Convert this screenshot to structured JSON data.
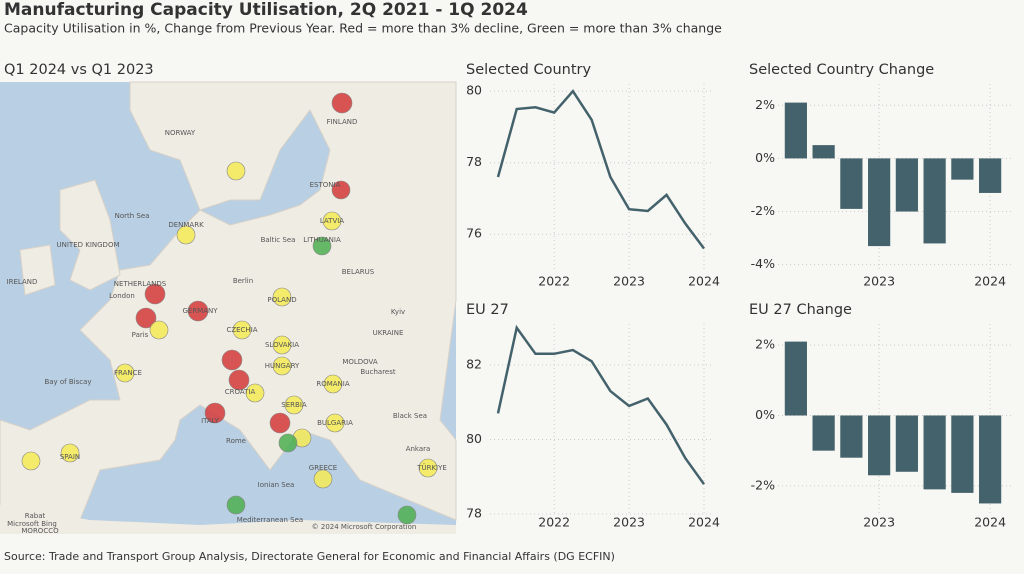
{
  "title": "Manufacturing Capacity Utilisation, 2Q 2021 - 1Q 2024",
  "subtitle": "Capacity Utilisation in %, Change from Previous Year. Red = more than 3% decline, Green = more than 3% change",
  "source": "Source: Trade and Transport Group Analysis, Directorate General for Economic and Financial Affairs (DG ECFIN)",
  "map": {
    "title": "Q1 2024 vs Q1 2023",
    "labels": [
      "NORWAY",
      "FINLAND",
      "North Sea",
      "UNITED KINGDOM",
      "IRELAND",
      "DENMARK",
      "NETHERLANDS",
      "London",
      "Berlin",
      "POLAND",
      "GERMANY",
      "Paris",
      "CZECHIA",
      "FRANCE",
      "Bay of Biscay",
      "SLOVAKIA",
      "HUNGARY",
      "UKRAINE",
      "Kyiv",
      "BELARUS",
      "LITHUANIA",
      "LATVIA",
      "ESTONIA",
      "Baltic Sea",
      "MOLDOVA",
      "ROMANIA",
      "Bucharest",
      "CROATIA",
      "SERBIA",
      "BULGARIA",
      "Black Sea",
      "Rome",
      "ITALY",
      "SPAIN",
      "GREECE",
      "Ankara",
      "TÜRKIYE",
      "Ionian Sea",
      "Mediterranean Sea",
      "Rabat",
      "MOROCCO",
      "© 2024 Microsoft Corporation",
      "Microsoft Bing"
    ]
  },
  "chart_data": [
    {
      "type": "line",
      "title": "Selected Country",
      "color": "#44626b",
      "x": [
        2021.25,
        2021.5,
        2021.75,
        2022,
        2022.25,
        2022.5,
        2022.75,
        2023,
        2023.25,
        2023.5,
        2023.75,
        2024
      ],
      "values": [
        77.6,
        79.5,
        79.55,
        79.4,
        80.0,
        79.2,
        77.6,
        76.7,
        76.65,
        77.1,
        76.3,
        75.6
      ],
      "xlim": [
        2021.25,
        2024
      ],
      "xticks": [
        2022,
        2023,
        2024
      ],
      "ylim": [
        75,
        80.2
      ],
      "yticks": [
        76,
        78,
        80
      ],
      "grid": true
    },
    {
      "type": "bar",
      "title": "Selected Country Change",
      "color": "#44626b",
      "x": [
        2022.25,
        2022.5,
        2022.75,
        2023,
        2023.25,
        2023.5,
        2023.75,
        2024
      ],
      "values": [
        2.1,
        0.5,
        -1.9,
        -3.3,
        -2.0,
        -3.2,
        -0.8,
        -1.3
      ],
      "xlim": [
        2022.125,
        2024.125
      ],
      "xticks": [
        2023,
        2024
      ],
      "ylim": [
        -4.2,
        2.8
      ],
      "yticks": [
        {
          "value": -4,
          "label": "-4%"
        },
        {
          "value": -2,
          "label": "-2%"
        },
        {
          "value": 0,
          "label": "0%"
        },
        {
          "value": 2,
          "label": "2%"
        }
      ],
      "grid": true
    },
    {
      "type": "line",
      "title": "EU 27",
      "color": "#44626b",
      "x": [
        2021.25,
        2021.5,
        2021.75,
        2022,
        2022.25,
        2022.5,
        2022.75,
        2023,
        2023.25,
        2023.5,
        2023.75,
        2024
      ],
      "values": [
        80.7,
        83.0,
        82.3,
        82.3,
        82.4,
        82.1,
        81.3,
        80.9,
        81.1,
        80.4,
        79.5,
        78.8
      ],
      "xlim": [
        2021.25,
        2024
      ],
      "xticks": [
        2022,
        2023,
        2024
      ],
      "ylim": [
        78,
        83.1
      ],
      "yticks": [
        78,
        80,
        82
      ],
      "grid": true
    },
    {
      "type": "bar",
      "title": "EU 27 Change",
      "color": "#44626b",
      "x": [
        2022.25,
        2022.5,
        2022.75,
        2023,
        2023.25,
        2023.5,
        2023.75,
        2024
      ],
      "values": [
        2.1,
        -1.0,
        -1.2,
        -1.7,
        -1.6,
        -2.1,
        -2.2,
        -2.5
      ],
      "xlim": [
        2022.125,
        2024.125
      ],
      "xticks": [
        2023,
        2024
      ],
      "ylim": [
        -2.8,
        2.6
      ],
      "yticks": [
        {
          "value": -2,
          "label": "-2%"
        },
        {
          "value": 0,
          "label": "0%"
        },
        {
          "value": 2,
          "label": "2%"
        }
      ],
      "grid": true
    }
  ]
}
